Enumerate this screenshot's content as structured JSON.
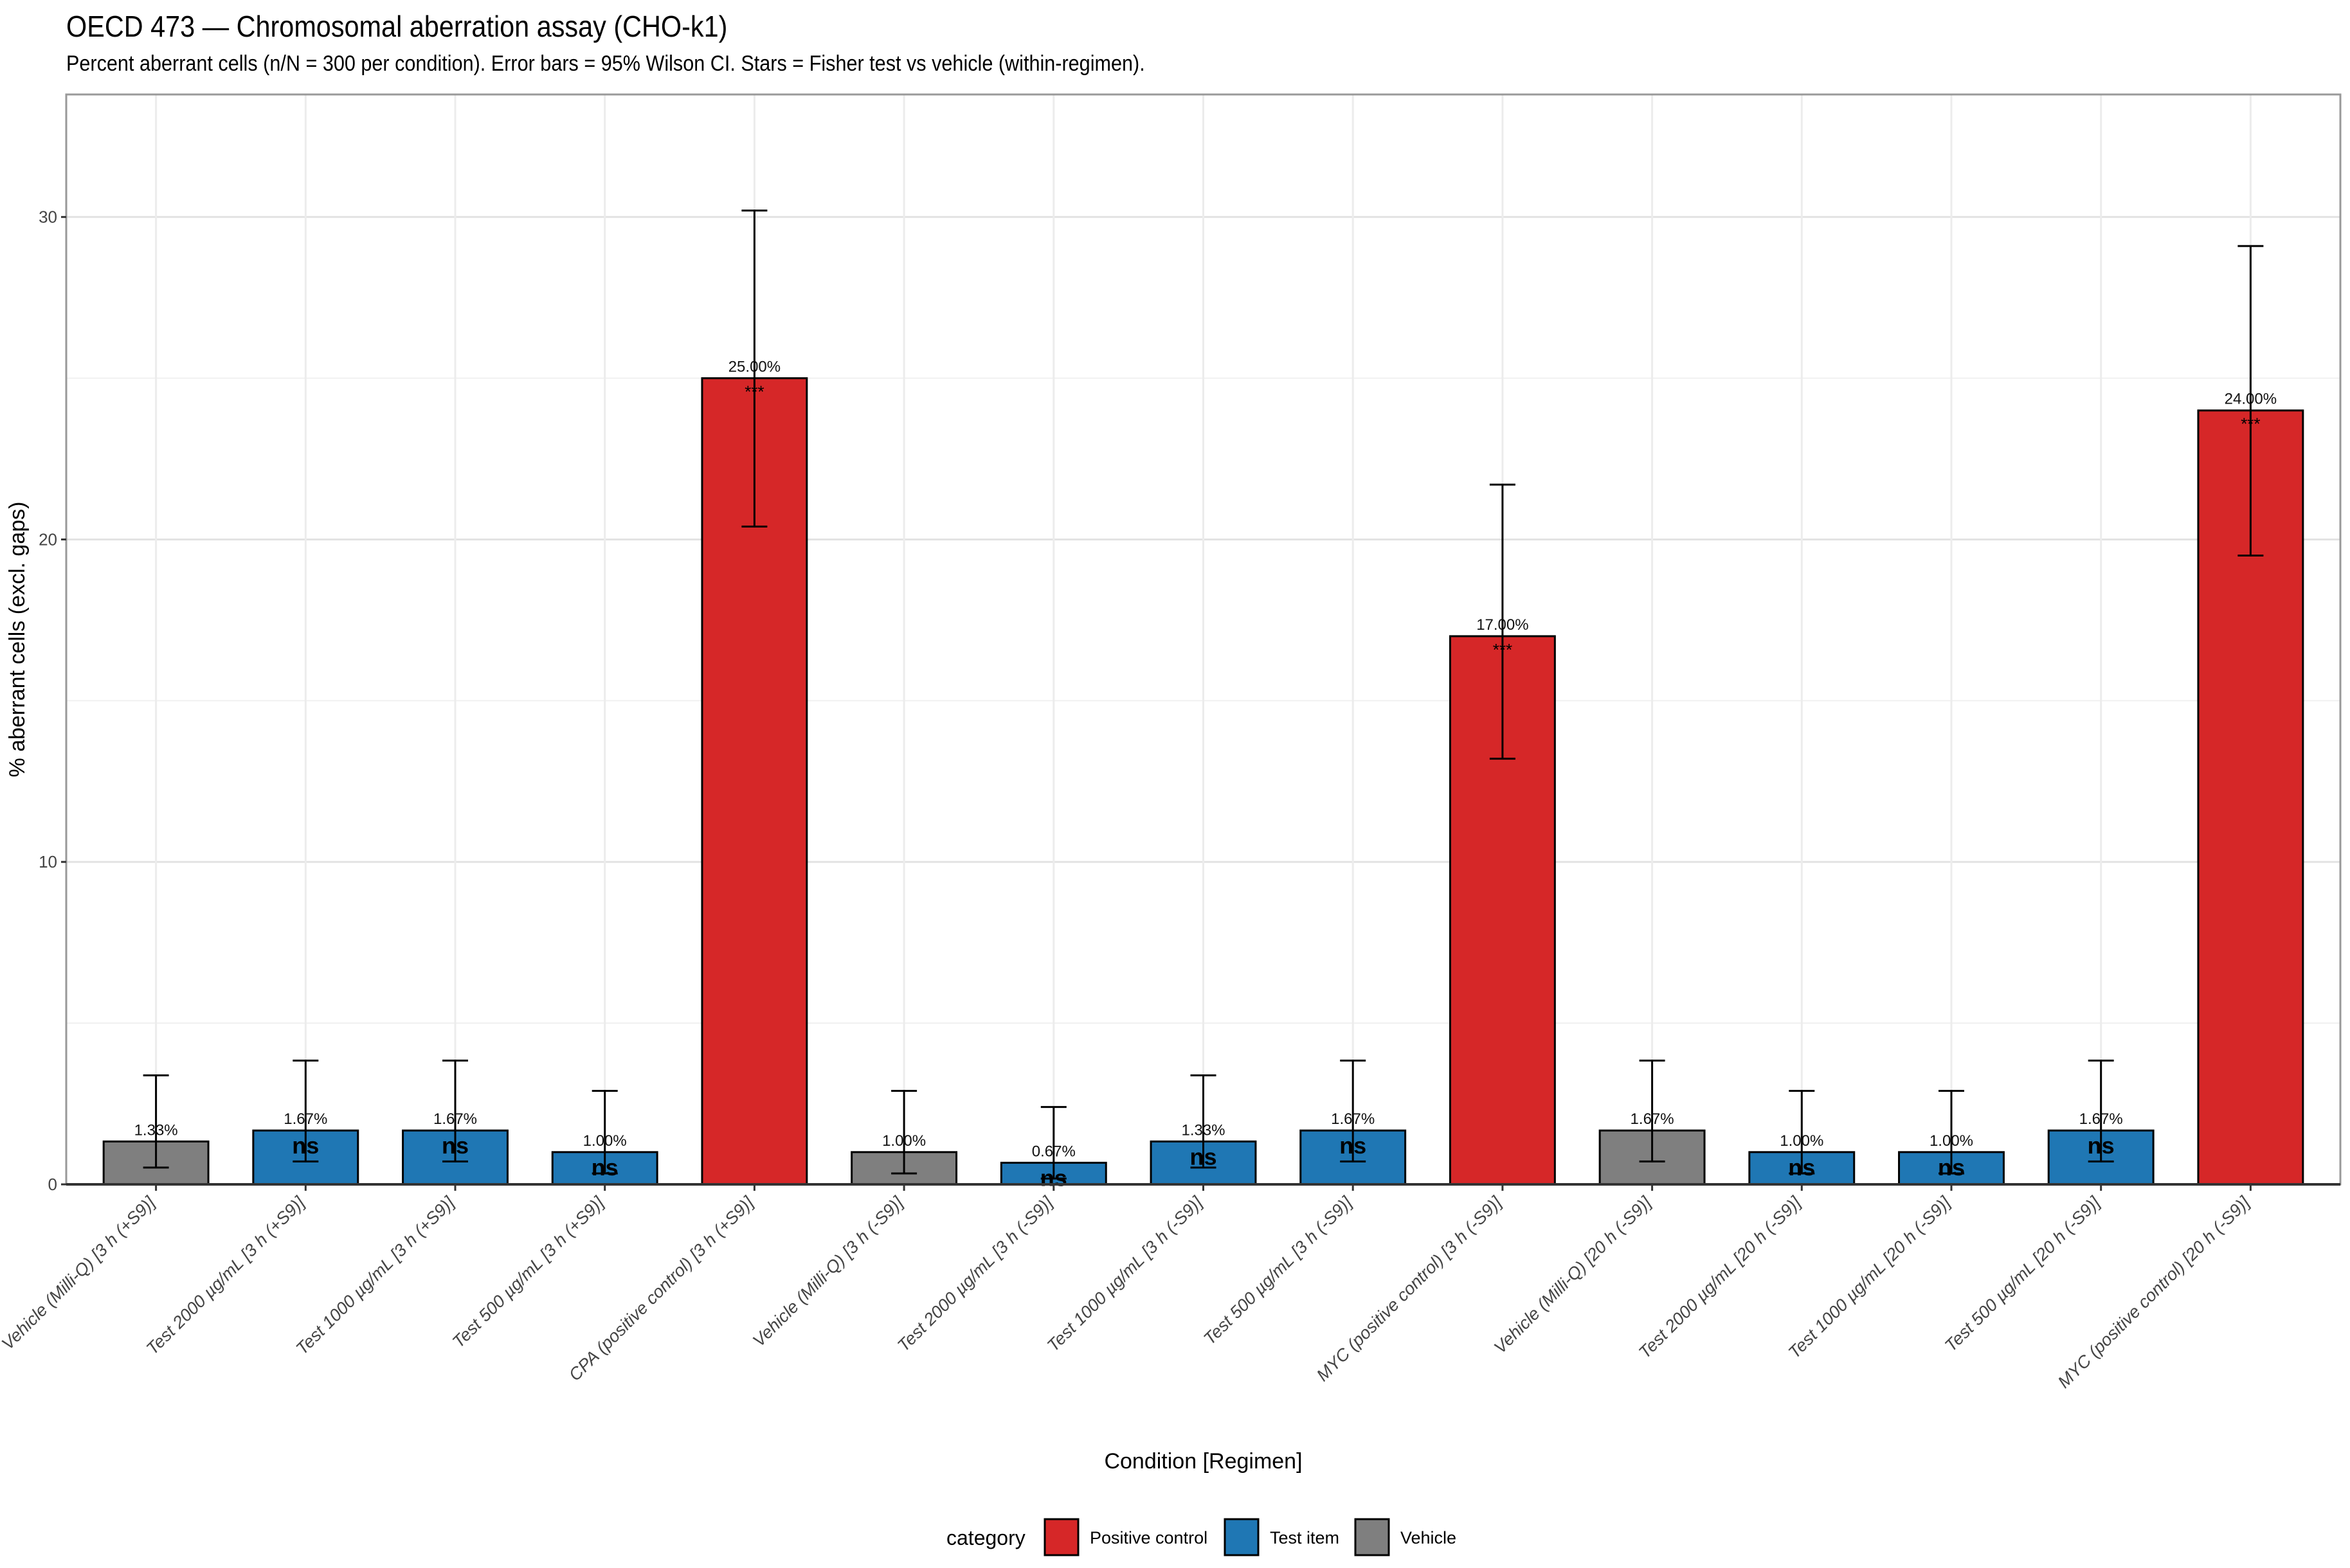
{
  "title": "OECD 473 — Chromosomal aberration assay (CHO-k1)",
  "subtitle": "Percent aberrant cells (n/N = 300 per condition). Error bars = 95% Wilson CI. Stars = Fisher test vs vehicle (within-regimen).",
  "chart_data": {
    "type": "bar",
    "xlabel": "Condition [Regimen]",
    "ylabel": "% aberrant cells (excl. gaps)",
    "ylim": [
      0,
      33.8
    ],
    "yticks": [
      0,
      10,
      20,
      30
    ],
    "grid": true,
    "categories": [
      "Vehicle (Milli-Q) [3 h (+S9)]",
      "Test 2000 µg/mL [3 h (+S9)]",
      "Test 1000 µg/mL [3 h (+S9)]",
      "Test 500 µg/mL [3 h (+S9)]",
      "CPA (positive control) [3 h (+S9)]",
      "Vehicle (Milli-Q) [3 h (-S9)]",
      "Test 2000 µg/mL [3 h (-S9)]",
      "Test 1000 µg/mL [3 h (-S9)]",
      "Test 500 µg/mL [3 h (-S9)]",
      "MYC (positive control) [3 h (-S9)]",
      "Vehicle (Milli-Q) [20 h (-S9)]",
      "Test 2000 µg/mL [20 h (-S9)]",
      "Test 1000 µg/mL [20 h (-S9)]",
      "Test 500 µg/mL [20 h (-S9)]",
      "MYC (positive control) [20 h (-S9)]"
    ],
    "values": [
      1.33,
      1.67,
      1.67,
      1.0,
      25.0,
      1.0,
      0.67,
      1.33,
      1.67,
      17.0,
      1.67,
      1.0,
      1.0,
      1.67,
      24.0
    ],
    "ci_low": [
      0.52,
      0.71,
      0.71,
      0.34,
      20.4,
      0.34,
      0.18,
      0.52,
      0.71,
      13.2,
      0.71,
      0.34,
      0.34,
      0.71,
      19.5
    ],
    "ci_high": [
      3.38,
      3.84,
      3.84,
      2.9,
      30.2,
      2.9,
      2.4,
      3.38,
      3.84,
      21.7,
      3.84,
      2.9,
      2.9,
      3.84,
      29.1
    ],
    "value_labels": [
      "1.33%",
      "1.67%",
      "1.67%",
      "1.00%",
      "25.00%",
      "1.00%",
      "0.67%",
      "1.33%",
      "1.67%",
      "17.00%",
      "1.67%",
      "1.00%",
      "1.00%",
      "1.67%",
      "24.00%"
    ],
    "significance": [
      "",
      "ns",
      "ns",
      "ns",
      "***",
      "",
      "ns",
      "ns",
      "ns",
      "***",
      "",
      "ns",
      "ns",
      "ns",
      "***"
    ],
    "category": [
      "Vehicle",
      "Test item",
      "Test item",
      "Test item",
      "Positive control",
      "Vehicle",
      "Test item",
      "Test item",
      "Test item",
      "Positive control",
      "Vehicle",
      "Test item",
      "Test item",
      "Test item",
      "Positive control"
    ],
    "legend": {
      "title": "category",
      "position": "bottom",
      "entries": [
        {
          "label": "Positive control",
          "color": "#D62728"
        },
        {
          "label": "Test item",
          "color": "#1F77B4"
        },
        {
          "label": "Vehicle",
          "color": "#7F7F7F"
        }
      ]
    }
  }
}
